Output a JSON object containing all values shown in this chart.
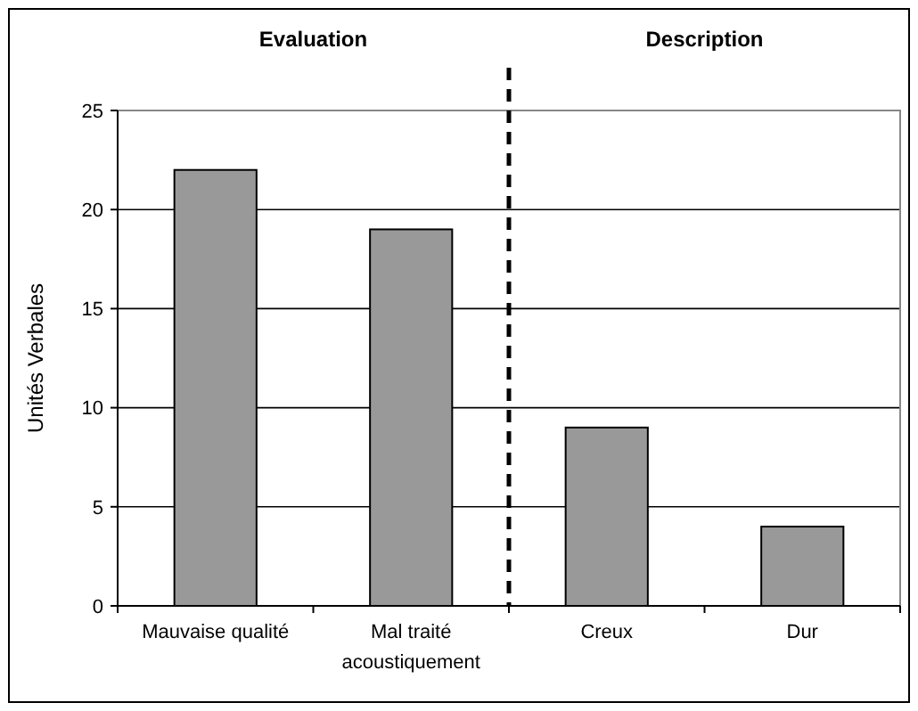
{
  "chart_data": {
    "type": "bar",
    "ylabel": "Unités Verbales",
    "categories": [
      "Mauvaise qualité",
      "Mal traité acoustiquement",
      "Creux",
      "Dur"
    ],
    "values": [
      22,
      19,
      9,
      4
    ],
    "color": "#999999",
    "ylim": [
      0,
      25
    ],
    "yticks": [
      0,
      5,
      10,
      15,
      20,
      25
    ],
    "grid": "y",
    "annotations": [
      "Evaluation",
      "Description"
    ]
  }
}
